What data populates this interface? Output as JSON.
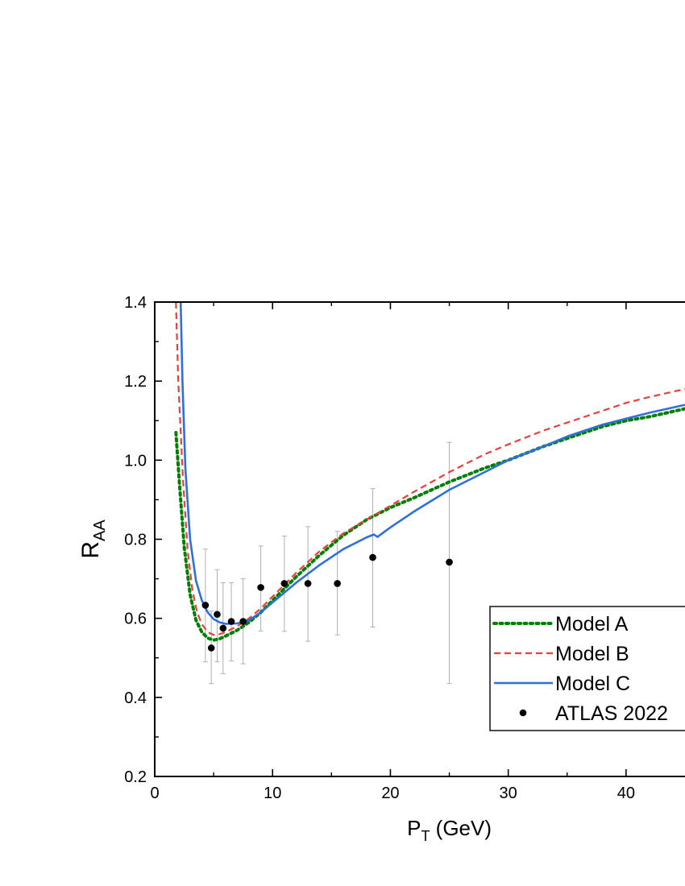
{
  "chart_data": {
    "type": "line",
    "xlabel": {
      "main": "P",
      "sub": "T",
      "rest": " (GeV)"
    },
    "ylabel": {
      "main": "R",
      "sub": "AA"
    },
    "xlim": [
      0,
      45
    ],
    "ylim": [
      0.2,
      1.4
    ],
    "xticks": [
      0,
      10,
      20,
      30,
      40
    ],
    "xtick_labels": [
      "0",
      "10",
      "20",
      "30",
      "40"
    ],
    "yticks": [
      0.2,
      0.4,
      0.6,
      0.8,
      1.0,
      1.2,
      1.4
    ],
    "ytick_labels": [
      "0.2",
      "0.4",
      "0.6",
      "0.8",
      "1.0",
      "1.2",
      "1.4"
    ],
    "grid": false,
    "legend_position": "bottom-right",
    "series": [
      {
        "name": "Model A",
        "style": "dotted",
        "color": "#008000",
        "x": [
          1.8,
          2.1,
          2.5,
          3.0,
          3.5,
          4.0,
          4.5,
          5.0,
          5.5,
          6.0,
          7.0,
          8.0,
          9.0,
          10.0,
          12.0,
          14.0,
          16.0,
          18.0,
          20.0,
          22.0,
          25.0,
          28.0,
          30.0,
          33.0,
          35.0,
          38.0,
          40.0,
          42.0,
          45.0
        ],
        "y": [
          1.07,
          0.94,
          0.78,
          0.66,
          0.595,
          0.565,
          0.55,
          0.545,
          0.548,
          0.555,
          0.57,
          0.59,
          0.615,
          0.645,
          0.705,
          0.76,
          0.81,
          0.85,
          0.88,
          0.905,
          0.945,
          0.98,
          1.0,
          1.035,
          1.055,
          1.085,
          1.1,
          1.11,
          1.13
        ]
      },
      {
        "name": "Model B",
        "style": "dashed",
        "color": "#e8403a",
        "x": [
          1.8,
          2.0,
          2.4,
          2.8,
          3.2,
          3.6,
          4.0,
          4.5,
          5.0,
          5.5,
          6.0,
          7.0,
          8.0,
          9.0,
          10.0,
          12.0,
          14.0,
          16.0,
          18.0,
          20.0,
          22.0,
          25.0,
          28.0,
          30.0,
          33.0,
          35.0,
          38.0,
          40.0,
          42.0,
          45.0
        ],
        "y": [
          1.4,
          1.2,
          0.95,
          0.77,
          0.67,
          0.615,
          0.585,
          0.565,
          0.558,
          0.56,
          0.565,
          0.58,
          0.6,
          0.625,
          0.655,
          0.715,
          0.77,
          0.815,
          0.85,
          0.885,
          0.92,
          0.97,
          1.015,
          1.04,
          1.075,
          1.095,
          1.125,
          1.145,
          1.16,
          1.18
        ]
      },
      {
        "name": "Model C",
        "style": "solid",
        "color": "#2f6fdb",
        "x": [
          2.2,
          2.35,
          2.6,
          3.0,
          3.5,
          4.0,
          4.5,
          5.0,
          5.5,
          6.0,
          7.0,
          8.0,
          9.0,
          10.0,
          12.0,
          14.0,
          16.0,
          18.0,
          18.6,
          18.9,
          20.0,
          22.0,
          25.0,
          28.0,
          30.0,
          33.0,
          35.0,
          38.0,
          40.0,
          42.0,
          45.0
        ],
        "y": [
          1.4,
          1.2,
          0.98,
          0.8,
          0.695,
          0.645,
          0.615,
          0.598,
          0.59,
          0.586,
          0.587,
          0.595,
          0.615,
          0.64,
          0.69,
          0.735,
          0.775,
          0.805,
          0.812,
          0.806,
          0.83,
          0.87,
          0.925,
          0.97,
          1.0,
          1.035,
          1.06,
          1.09,
          1.105,
          1.12,
          1.14
        ]
      }
    ],
    "points": {
      "name": "ATLAS 2022",
      "color": "#000000",
      "x": [
        4.3,
        4.8,
        5.3,
        5.8,
        6.5,
        7.5,
        9.0,
        11.0,
        13.0,
        15.5,
        18.5,
        25.0
      ],
      "y": [
        0.633,
        0.525,
        0.61,
        0.575,
        0.592,
        0.592,
        0.678,
        0.688,
        0.688,
        0.688,
        0.754,
        0.742
      ],
      "err_low": [
        0.49,
        0.435,
        0.49,
        0.46,
        0.492,
        0.485,
        0.568,
        0.567,
        0.542,
        0.558,
        0.578,
        0.435
      ],
      "err_high": [
        0.775,
        0.618,
        0.723,
        0.69,
        0.69,
        0.7,
        0.783,
        0.808,
        0.832,
        0.82,
        0.928,
        1.045
      ]
    }
  }
}
